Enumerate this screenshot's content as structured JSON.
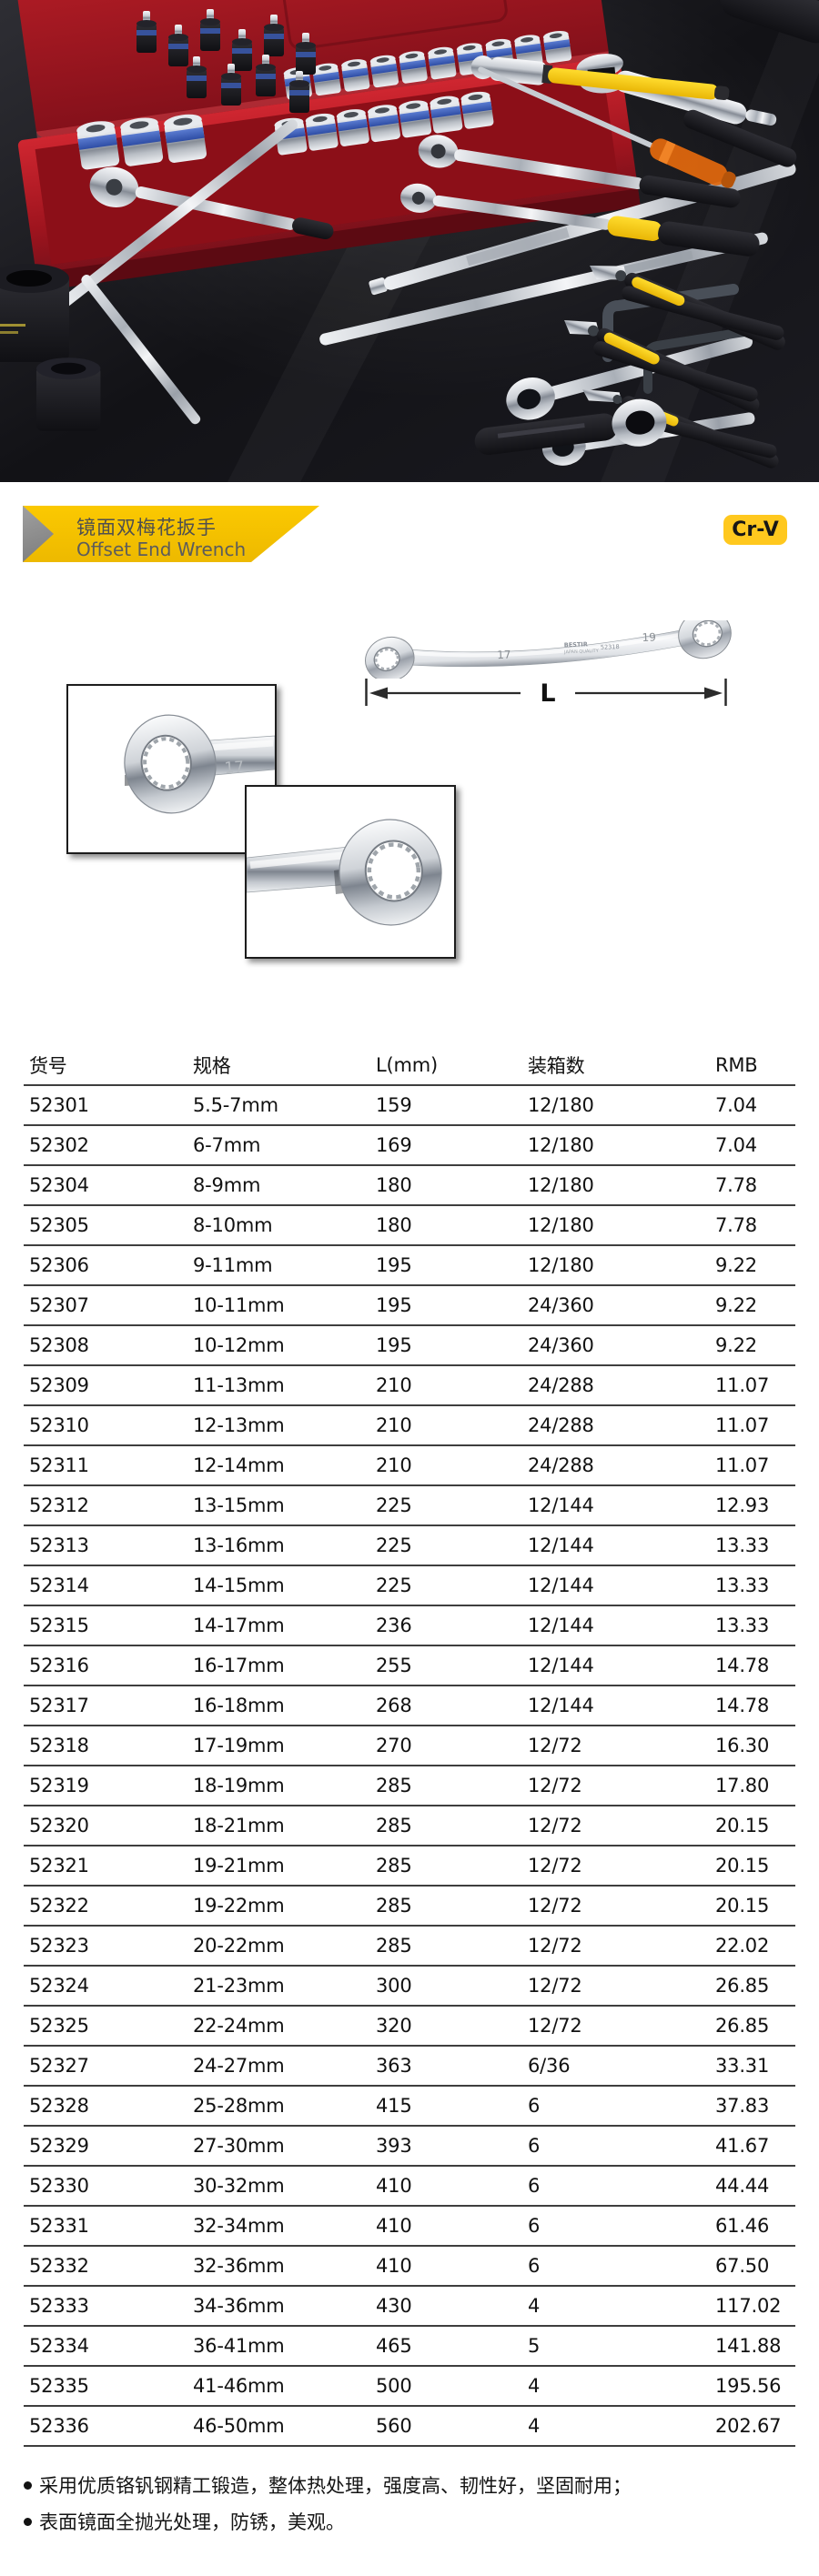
{
  "banner": {
    "title_zh": "镜面双梅花扳手",
    "title_en": "Offset End Wrench",
    "badge": "Cr-V"
  },
  "colors": {
    "banner_yellow": "#F6C400",
    "arrow_gray": "#8F8F8F",
    "badge_yellow": "#FFC81E",
    "table_line": "#3E3E3E",
    "photo_background": "#141418",
    "toolbox_red": "#A3131D"
  },
  "product": {
    "dimension_label": "L",
    "markings": {
      "left_size": "17",
      "right_size": "19",
      "brand": "BESTIR",
      "quality": "JAPAN QUALITY",
      "code": "52318"
    },
    "inset_marking": "17"
  },
  "table": {
    "headers": [
      "货号",
      "规格",
      "L(mm)",
      "装箱数",
      "RMB"
    ],
    "rows": [
      [
        "52301",
        "5.5-7mm",
        "159",
        "12/180",
        "7.04"
      ],
      [
        "52302",
        "6-7mm",
        "169",
        "12/180",
        "7.04"
      ],
      [
        "52304",
        "8-9mm",
        "180",
        "12/180",
        "7.78"
      ],
      [
        "52305",
        "8-10mm",
        "180",
        "12/180",
        "7.78"
      ],
      [
        "52306",
        "9-11mm",
        "195",
        "12/180",
        "9.22"
      ],
      [
        "52307",
        "10-11mm",
        "195",
        "24/360",
        "9.22"
      ],
      [
        "52308",
        "10-12mm",
        "195",
        "24/360",
        "9.22"
      ],
      [
        "52309",
        "11-13mm",
        "210",
        "24/288",
        "11.07"
      ],
      [
        "52310",
        "12-13mm",
        "210",
        "24/288",
        "11.07"
      ],
      [
        "52311",
        "12-14mm",
        "210",
        "24/288",
        "11.07"
      ],
      [
        "52312",
        "13-15mm",
        "225",
        "12/144",
        "12.93"
      ],
      [
        "52313",
        "13-16mm",
        "225",
        "12/144",
        "13.33"
      ],
      [
        "52314",
        "14-15mm",
        "225",
        "12/144",
        "13.33"
      ],
      [
        "52315",
        "14-17mm",
        "236",
        "12/144",
        "13.33"
      ],
      [
        "52316",
        "16-17mm",
        "255",
        "12/144",
        "14.78"
      ],
      [
        "52317",
        "16-18mm",
        "268",
        "12/144",
        "14.78"
      ],
      [
        "52318",
        "17-19mm",
        "270",
        "12/72",
        "16.30"
      ],
      [
        "52319",
        "18-19mm",
        "285",
        "12/72",
        "17.80"
      ],
      [
        "52320",
        "18-21mm",
        "285",
        "12/72",
        "20.15"
      ],
      [
        "52321",
        "19-21mm",
        "285",
        "12/72",
        "20.15"
      ],
      [
        "52322",
        "19-22mm",
        "285",
        "12/72",
        "20.15"
      ],
      [
        "52323",
        "20-22mm",
        "285",
        "12/72",
        "22.02"
      ],
      [
        "52324",
        "21-23mm",
        "300",
        "12/72",
        "26.85"
      ],
      [
        "52325",
        "22-24mm",
        "320",
        "12/72",
        "26.85"
      ],
      [
        "52327",
        "24-27mm",
        "363",
        "6/36",
        "33.31"
      ],
      [
        "52328",
        "25-28mm",
        "415",
        "6",
        "37.83"
      ],
      [
        "52329",
        "27-30mm",
        "393",
        "6",
        "41.67"
      ],
      [
        "52330",
        "30-32mm",
        "410",
        "6",
        "44.44"
      ],
      [
        "52331",
        "32-34mm",
        "410",
        "6",
        "61.46"
      ],
      [
        "52332",
        "32-36mm",
        "410",
        "6",
        "67.50"
      ],
      [
        "52333",
        "34-36mm",
        "430",
        "4",
        "117.02"
      ],
      [
        "52334",
        "36-41mm",
        "465",
        "5",
        "141.88"
      ],
      [
        "52335",
        "41-46mm",
        "500",
        "4",
        "195.56"
      ],
      [
        "52336",
        "46-50mm",
        "560",
        "4",
        "202.67"
      ]
    ]
  },
  "footnotes": [
    "采用优质铬钒钢精工锻造，整体热处理，强度高、韧性好，坚固耐用；",
    "表面镜面全抛光处理，防锈，美观。"
  ]
}
